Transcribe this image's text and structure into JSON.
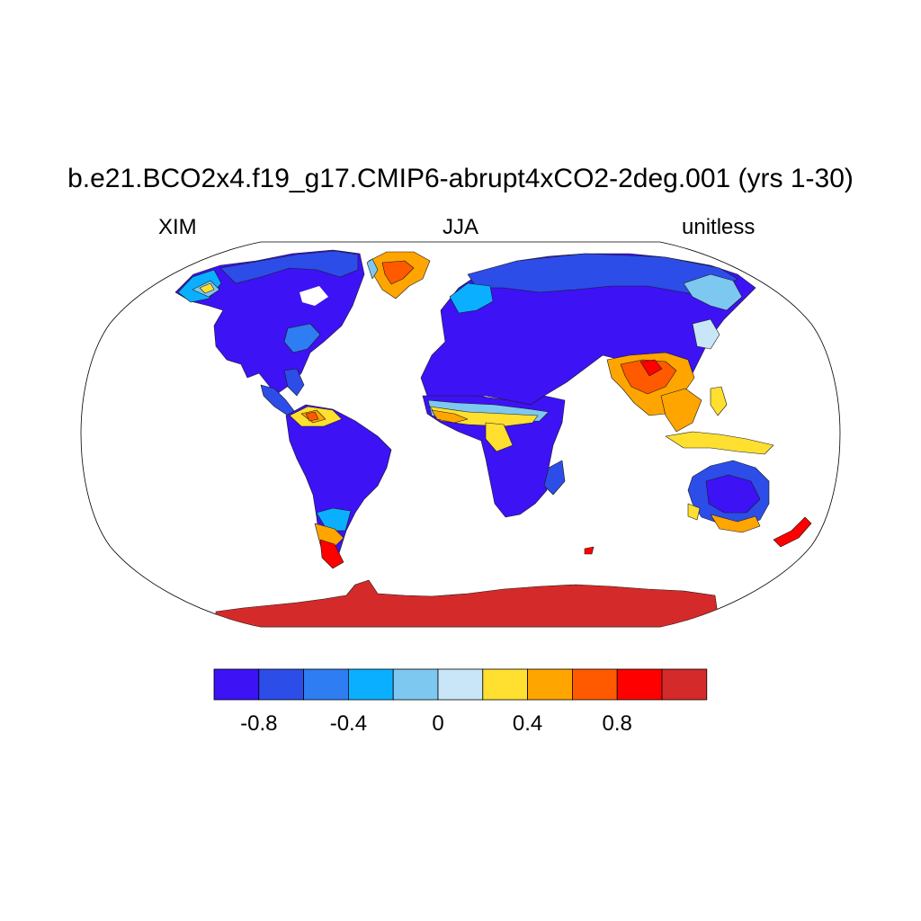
{
  "title": "b.e21.BCO2x4.f19_g17.CMIP6-abrupt4xCO2-2deg.001 (yrs 1-30)",
  "subtitle_left": "XIM",
  "subtitle_center": "JJA",
  "subtitle_right": "unitless",
  "colorbar": {
    "colors": [
      "#3d12f5",
      "#2d4de8",
      "#2f7df2",
      "#0ab0ff",
      "#7dc8f0",
      "#c8e6f8",
      "#ffdf30",
      "#ffa500",
      "#ff5a00",
      "#ff0000",
      "#d42a2a"
    ],
    "tick_labels": [
      "-0.8",
      "-0.4",
      "0",
      "0.4",
      "0.8"
    ]
  },
  "map": {
    "projection": "robinson",
    "fill_colors": {
      "strong_negative": "#3d12f5",
      "negative": "#2d4de8",
      "moderate_negative": "#2f7df2",
      "weak_negative": "#0ab0ff",
      "slight_negative": "#7dc8f0",
      "near_zero": "#c8e6f8",
      "slight_positive": "#ffdf30",
      "positive": "#ffa500",
      "moderate_positive": "#ff5a00",
      "strong_positive": "#ff0000",
      "max_positive": "#d42a2a"
    }
  }
}
